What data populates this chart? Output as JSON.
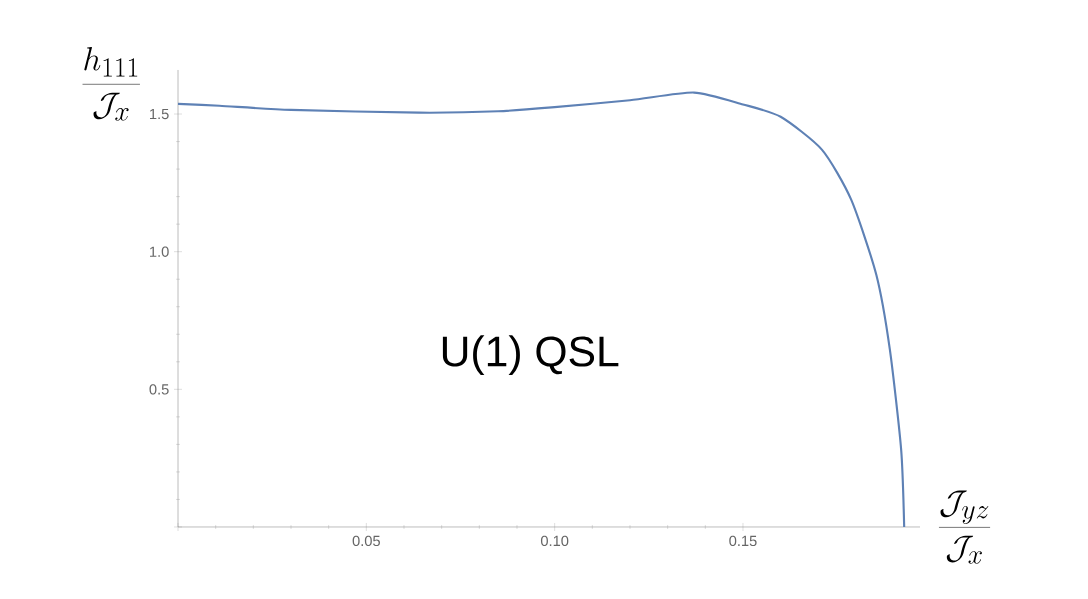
{
  "chart_data": {
    "type": "line",
    "xlabel": "\\frac{\\mathcal{J}_{yz}}{\\mathcal{J}_x}",
    "ylabel": "\\frac{h_{111}}{\\mathcal{J}_x}",
    "annotations": [
      "U(1) QSL"
    ],
    "x": [
      0,
      0.011,
      0.03,
      0.064,
      0.085,
      0.1,
      0.12,
      0.137,
      0.15,
      0.16,
      0.171,
      0.1787,
      0.1854,
      0.189,
      0.192,
      0.1928
    ],
    "series": [
      {
        "color": "#5e81b5",
        "values": [
          1.537,
          1.53,
          1.515,
          1.505,
          1.51,
          1.525,
          1.55,
          1.578,
          1.535,
          1.49,
          1.37,
          1.19,
          0.916,
          0.644,
          0.28,
          0
        ]
      }
    ],
    "xlim": [
      0,
      0.197
    ],
    "ylim": [
      0,
      1.66
    ],
    "xticks": [
      {
        "value": 0,
        "label": null
      },
      0.05,
      {
        "value": 0.1,
        "label": "0.10"
      },
      0.15
    ],
    "yticks": [
      {
        "value": 0,
        "label": null
      },
      0.5,
      {
        "value": 1,
        "label": "1.0"
      },
      1.5
    ]
  }
}
